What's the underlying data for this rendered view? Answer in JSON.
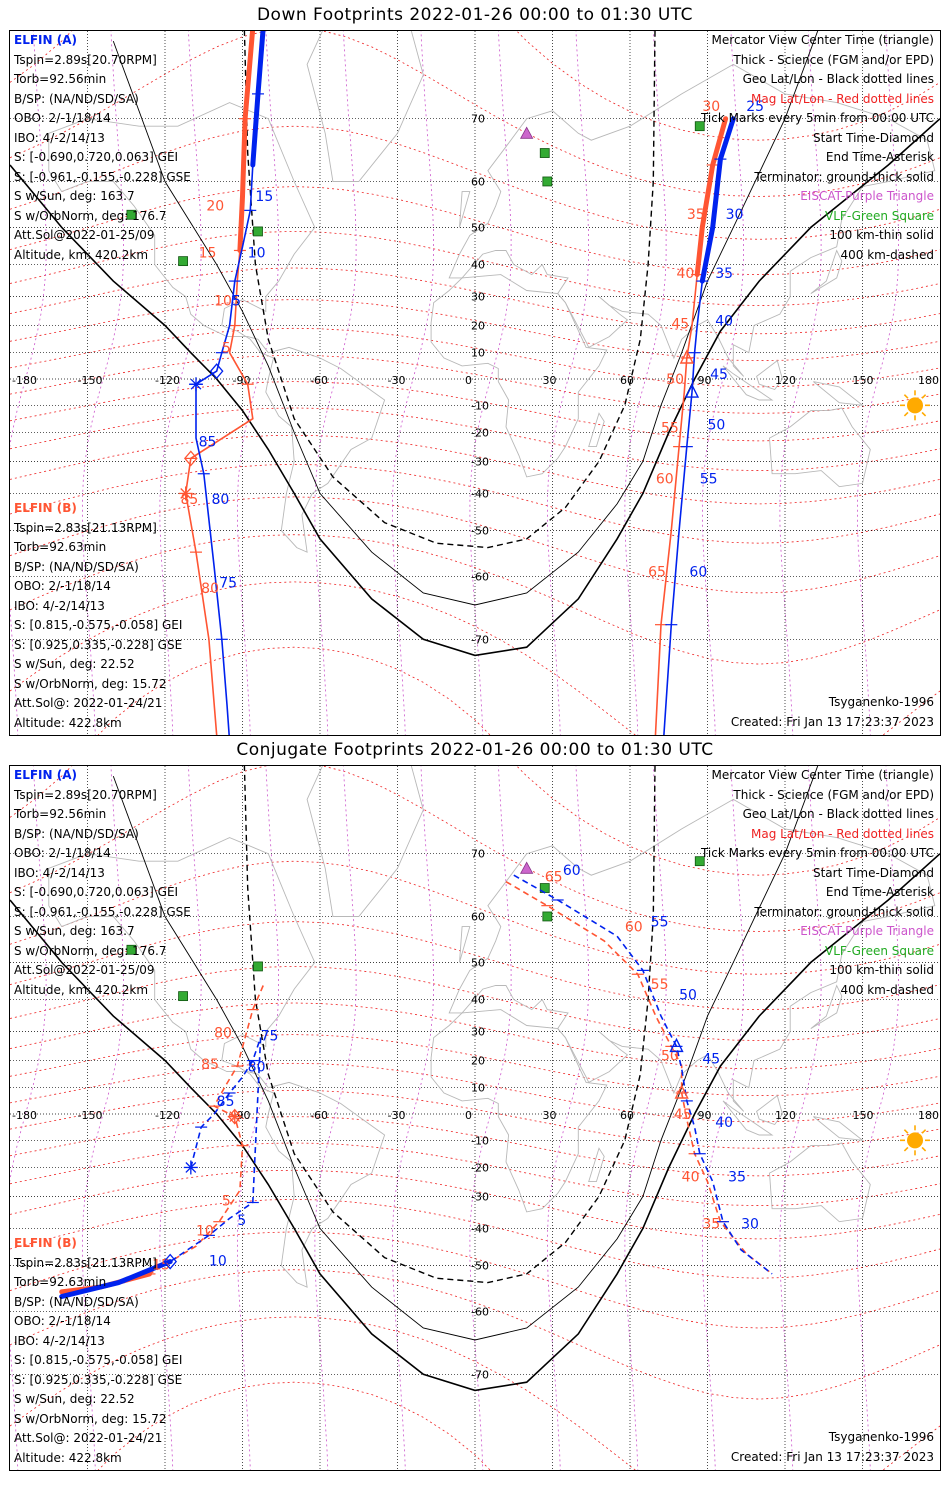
{
  "panels": [
    {
      "title": "Down Footprints 2022-01-26 00:00 to 01:30 UTC",
      "kind": "down",
      "elfin_a": {
        "header": "ELFIN (A)",
        "lines": [
          "Tspin=2.89s[20.70RPM]",
          "Torb=92.56min",
          "B/SP: (NA/ND/SD/SA)",
          "OBO: 2/-1/18/14",
          "IBO: 4/-2/14/13",
          "S: [-0.690,0.720,0.063] GEI",
          "S: [-0.961,-0.155,-0.228] GSE",
          "S w/Sun, deg: 163.7",
          "S w/OrbNorm, deg: 176.7",
          "Att.Sol@2022-01-25/09",
          "Altitude, km: 420.2km"
        ]
      },
      "elfin_b": {
        "header": "ELFIN (B)",
        "lines": [
          "Tspin=2.83s[21.13RPM]",
          "Torb=92.63min",
          "B/SP: (NA/ND/SD/SA)",
          "OBO: 2/-1/18/14",
          "IBO: 4/-2/14/13",
          "S: [0.815,-0.575,-0.058] GEI",
          "S: [0.925,0.335,-0.228] GSE",
          "S w/Sun, deg: 22.52",
          "S w/OrbNorm, deg: 15.72",
          "Att.Sol@: 2022-01-24/21",
          "Altitude: 422.8km"
        ]
      },
      "legend": [
        "Mercator View Center Time (triangle)",
        "Thick - Science (FGM and/or EPD)",
        "Geo Lat/Lon - Black dotted lines",
        "Mag Lat/Lon - Red dotted lines",
        "Tick Marks every 5min from 00:00 UTC",
        "Start Time-Diamond",
        "End Time-Asterisk",
        "Terminator: ground-thick solid",
        "EISCAT-Purple Triangle",
        "VLF-Green Square",
        "100 km-thin solid",
        "400 km-dashed"
      ],
      "model": "Tsyganenko-1996",
      "created": "Created: Fri Jan 13 17:23:37 2023"
    },
    {
      "title": "Conjugate Footprints 2022-01-26 00:00 to 01:30 UTC",
      "kind": "conj",
      "elfin_a": {
        "header": "ELFIN (A)",
        "lines": [
          "Tspin=2.89s[20.70RPM]",
          "Torb=92.56min",
          "B/SP: (NA/ND/SD/SA)",
          "OBO: 2/-1/18/14",
          "IBO: 4/-2/14/13",
          "S: [-0.690,0.720,0.063] GEI",
          "S: [-0.961,-0.155,-0.228] GSE",
          "S w/Sun, deg: 163.7",
          "S w/OrbNorm, deg: 176.7",
          "Att.Sol@2022-01-25/09",
          "Altitude, km: 420.2km"
        ]
      },
      "elfin_b": {
        "header": "ELFIN (B)",
        "lines": [
          "Tspin=2.83s[21.13RPM]",
          "Torb=92.63min",
          "B/SP: (NA/ND/SD/SA)",
          "OBO: 2/-1/18/14",
          "IBO: 4/-2/14/13",
          "S: [0.815,-0.575,-0.058] GEI",
          "S: [0.925,0.335,-0.228] GSE",
          "S w/Sun, deg: 22.52",
          "S w/OrbNorm, deg: 15.72",
          "Att.Sol@: 2022-01-24/21",
          "Altitude: 422.8km"
        ]
      },
      "legend": [
        "Mercator View Center Time (triangle)",
        "Thick - Science (FGM and/or EPD)",
        "Geo Lat/Lon - Black dotted lines",
        "Mag Lat/Lon - Red dotted lines",
        "Tick Marks every 5min from 00:00 UTC",
        "Start Time-Diamond",
        "End Time-Asterisk",
        "Terminator: ground-thick solid",
        "EISCAT-Purple Triangle",
        "VLF-Green Square",
        "100 km-thin solid",
        "400 km-dashed"
      ],
      "model": "Tsyganenko-1996",
      "created": "Created: Fri Jan 13 17:23:37 2023"
    }
  ],
  "axes": {
    "lon_ticks": [
      "-180",
      "-150",
      "-120",
      "-90",
      "-60",
      "-30",
      "0",
      "30",
      "60",
      "90",
      "120",
      "150",
      "180"
    ],
    "lat_ticks": [
      "70",
      "60",
      "50",
      "40",
      "30",
      "20",
      "10",
      "-10",
      "-20",
      "-30",
      "-40",
      "-50",
      "-60",
      "-70"
    ]
  },
  "colors": {
    "elfin_a": "#0022ee",
    "elfin_b": "#ff5533",
    "grid_mag": "#ee2222",
    "grid_mag_lon": "#cc55cc",
    "coast": "#b8b8b8",
    "eiscat": "#cc66cc",
    "vlf": "#33aa33",
    "sun": "#ffaa00"
  },
  "tracks": {
    "down": {
      "a": [
        [
          -82,
          79
        ],
        [
          -84,
          73
        ],
        [
          -86,
          63
        ],
        [
          -87,
          54
        ],
        [
          -90,
          45
        ],
        [
          -93,
          35
        ],
        [
          -95,
          20
        ],
        [
          -98,
          10
        ],
        [
          -100,
          3
        ],
        [
          -108,
          -2
        ],
        [
          -108,
          -22
        ],
        [
          -105,
          -34
        ],
        [
          -101,
          -58
        ],
        [
          -98,
          -70
        ],
        [
          -96,
          -77
        ],
        [
          -94,
          -82
        ]
      ],
      "a_thick": [
        [
          -82,
          79
        ],
        [
          -84,
          73
        ],
        [
          -86,
          63
        ]
      ],
      "a_labels": [
        [
          "15",
          -85,
          56
        ],
        [
          "10",
          -88,
          42
        ],
        [
          "5",
          -94,
          27
        ],
        [
          "85",
          -107,
          -25
        ],
        [
          "80",
          -102,
          -43
        ],
        [
          "75",
          -99,
          -62
        ]
      ],
      "b": [
        [
          -86,
          79
        ],
        [
          -89,
          70
        ],
        [
          -90,
          57
        ],
        [
          -91,
          44
        ],
        [
          -92,
          35
        ],
        [
          -93,
          20
        ],
        [
          -95,
          10
        ],
        [
          -88,
          -2
        ],
        [
          -86,
          -15
        ],
        [
          -110,
          -29
        ],
        [
          -112,
          -40
        ],
        [
          -108,
          -55
        ],
        [
          -103,
          -70
        ],
        [
          -98,
          -83
        ]
      ],
      "b_thick": [
        [
          -86,
          79
        ],
        [
          -89,
          70
        ],
        [
          -90,
          57
        ],
        [
          -91,
          44
        ]
      ],
      "b_labels": [
        [
          "20",
          -104,
          54
        ],
        [
          "15",
          -107,
          42
        ],
        [
          "10",
          -101,
          27
        ],
        [
          "5",
          -98,
          10
        ],
        [
          "85",
          -114,
          -43
        ],
        [
          "80",
          -106,
          -63
        ]
      ],
      "a2": [
        [
          100,
          70
        ],
        [
          95,
          64
        ],
        [
          92,
          50
        ],
        [
          88,
          35
        ],
        [
          86,
          20
        ],
        [
          85,
          10
        ],
        [
          84,
          -5
        ],
        [
          82,
          -25
        ],
        [
          79,
          -50
        ],
        [
          76,
          -68
        ],
        [
          72,
          -82
        ]
      ],
      "a2_thick": [
        [
          100,
          70
        ],
        [
          95,
          64
        ],
        [
          92,
          50
        ],
        [
          88,
          35
        ]
      ],
      "a2_labels": [
        [
          "25",
          105,
          71
        ],
        [
          "30",
          97,
          52
        ],
        [
          "35",
          93,
          36
        ],
        [
          "40",
          93,
          20
        ],
        [
          "45",
          91,
          0
        ],
        [
          "50",
          90,
          -19
        ],
        [
          "55",
          87,
          -37
        ],
        [
          "60",
          83,
          -60
        ],
        [
          "65",
          77,
          -82
        ]
      ],
      "b2": [
        [
          97,
          70
        ],
        [
          92,
          63
        ],
        [
          88,
          50
        ],
        [
          86,
          37
        ],
        [
          84,
          20
        ],
        [
          82,
          8
        ],
        [
          81,
          -5
        ],
        [
          79,
          -25
        ],
        [
          76,
          -50
        ],
        [
          72,
          -68
        ],
        [
          69,
          -82
        ]
      ],
      "b2_thick": [
        [
          97,
          70
        ],
        [
          92,
          63
        ],
        [
          88,
          50
        ],
        [
          86,
          37
        ]
      ],
      "b2_labels": [
        [
          "30",
          88,
          71
        ],
        [
          "35",
          82,
          52
        ],
        [
          "40",
          78,
          36
        ],
        [
          "45",
          76,
          19
        ],
        [
          "50",
          74,
          -2
        ],
        [
          "55",
          72,
          -20
        ],
        [
          "60",
          70,
          -37
        ],
        [
          "65",
          67,
          -60
        ],
        [
          "70",
          60,
          -82
        ]
      ]
    },
    "conj": {
      "a": [
        [
          -110,
          -20
        ],
        [
          -106,
          -5
        ],
        [
          -101,
          0
        ],
        [
          -95,
          8
        ],
        [
          -90,
          14
        ],
        [
          -86,
          20
        ],
        [
          -83,
          28
        ],
        [
          -86,
          -32
        ],
        [
          -95,
          -37
        ],
        [
          -103,
          -42
        ],
        [
          -118,
          -49
        ],
        [
          -138,
          -54
        ],
        [
          -160,
          -57
        ]
      ],
      "a_thick": [
        [
          -118,
          -49
        ],
        [
          -138,
          -54
        ],
        [
          -160,
          -57
        ]
      ],
      "a_labels": [
        [
          "85",
          -100,
          3
        ],
        [
          "80",
          -88,
          16
        ],
        [
          "75",
          -83,
          27
        ],
        [
          "5",
          -92,
          -39
        ],
        [
          "10",
          -103,
          -50
        ]
      ],
      "b": [
        [
          -82,
          44
        ],
        [
          -86,
          37
        ],
        [
          -89,
          28
        ],
        [
          -92,
          18
        ],
        [
          -97,
          10
        ],
        [
          -101,
          3
        ],
        [
          -93,
          -1
        ],
        [
          -90,
          -12
        ],
        [
          -91,
          -28
        ],
        [
          -99,
          -38
        ],
        [
          -108,
          -45
        ],
        [
          -126,
          -52
        ],
        [
          -145,
          -55
        ],
        [
          -160,
          -56
        ]
      ],
      "b_thick": [
        [
          -126,
          -52
        ],
        [
          -145,
          -55
        ],
        [
          -160,
          -56
        ]
      ],
      "b_labels": [
        [
          "80",
          -101,
          28
        ],
        [
          "85",
          -106,
          17
        ],
        [
          "5",
          -98,
          -33
        ],
        [
          "10",
          -108,
          -42
        ],
        [
          "15",
          -125,
          -51
        ]
      ],
      "a2": [
        [
          15,
          67
        ],
        [
          32,
          63
        ],
        [
          55,
          56
        ],
        [
          65,
          48
        ],
        [
          72,
          35
        ],
        [
          78,
          25
        ],
        [
          80,
          17
        ],
        [
          82,
          5
        ],
        [
          85,
          -5
        ],
        [
          87,
          -15
        ],
        [
          92,
          -25
        ],
        [
          96,
          -38
        ],
        [
          103,
          -46
        ],
        [
          115,
          -52
        ]
      ],
      "a2_labels": [
        [
          "60",
          34,
          67
        ],
        [
          "55",
          68,
          58
        ],
        [
          "50",
          79,
          40
        ],
        [
          "45",
          88,
          19
        ],
        [
          "40",
          93,
          -5
        ],
        [
          "35",
          98,
          -25
        ],
        [
          "30",
          103,
          -40
        ]
      ],
      "b2": [
        [
          12,
          66
        ],
        [
          28,
          62
        ],
        [
          50,
          55
        ],
        [
          63,
          47
        ],
        [
          70,
          35
        ],
        [
          76,
          25
        ],
        [
          80,
          18
        ],
        [
          80,
          8
        ],
        [
          82,
          -2
        ],
        [
          85,
          -15
        ],
        [
          90,
          -25
        ],
        [
          95,
          -38
        ],
        [
          105,
          -47
        ],
        [
          115,
          -52
        ]
      ],
      "b2_labels": [
        [
          "65",
          27,
          66
        ],
        [
          "60",
          58,
          57
        ],
        [
          "55",
          68,
          43
        ],
        [
          "50",
          72,
          20
        ],
        [
          "45",
          77,
          -2
        ],
        [
          "40",
          80,
          -25
        ],
        [
          "35",
          88,
          -40
        ]
      ]
    }
  },
  "terminator": {
    "ground": [
      [
        -180,
        63
      ],
      [
        -160,
        50
      ],
      [
        -140,
        35
      ],
      [
        -120,
        20
      ],
      [
        -110,
        10
      ],
      [
        -100,
        0
      ],
      [
        -90,
        -12
      ],
      [
        -80,
        -26
      ],
      [
        -70,
        -40
      ],
      [
        -60,
        -52
      ],
      [
        -40,
        -64
      ],
      [
        -20,
        -70
      ],
      [
        0,
        -72
      ],
      [
        20,
        -71
      ],
      [
        40,
        -64
      ],
      [
        55,
        -52
      ],
      [
        65,
        -40
      ],
      [
        75,
        -20
      ],
      [
        85,
        0
      ],
      [
        95,
        18
      ],
      [
        110,
        35
      ],
      [
        130,
        50
      ],
      [
        160,
        63
      ],
      [
        180,
        70
      ]
    ],
    "km100": [
      [
        -140,
        78
      ],
      [
        -120,
        60
      ],
      [
        -100,
        40
      ],
      [
        -90,
        25
      ],
      [
        -80,
        5
      ],
      [
        -70,
        -20
      ],
      [
        -60,
        -40
      ],
      [
        -40,
        -55
      ],
      [
        -20,
        -63
      ],
      [
        0,
        -65
      ],
      [
        20,
        -63
      ],
      [
        40,
        -55
      ],
      [
        55,
        -43
      ],
      [
        65,
        -30
      ],
      [
        72,
        -10
      ],
      [
        80,
        10
      ],
      [
        90,
        35
      ],
      [
        100,
        50
      ],
      [
        120,
        70
      ],
      [
        140,
        82
      ]
    ],
    "km400": [
      [
        -90,
        83
      ],
      [
        -88,
        65
      ],
      [
        -85,
        40
      ],
      [
        -80,
        15
      ],
      [
        -70,
        -15
      ],
      [
        -55,
        -35
      ],
      [
        -35,
        -48
      ],
      [
        -15,
        -53
      ],
      [
        5,
        -54
      ],
      [
        20,
        -52
      ],
      [
        35,
        -44
      ],
      [
        48,
        -30
      ],
      [
        58,
        -10
      ],
      [
        64,
        15
      ],
      [
        67,
        40
      ],
      [
        69,
        60
      ],
      [
        70,
        83
      ]
    ]
  },
  "stations": {
    "eiscat": [
      [
        19,
        83
      ],
      [
        20,
        68
      ]
    ],
    "vlf": [
      [
        27,
        65
      ],
      [
        28,
        60
      ],
      [
        -84,
        49
      ],
      [
        -133,
        53
      ],
      [
        -113,
        41
      ],
      [
        87,
        69
      ]
    ]
  }
}
